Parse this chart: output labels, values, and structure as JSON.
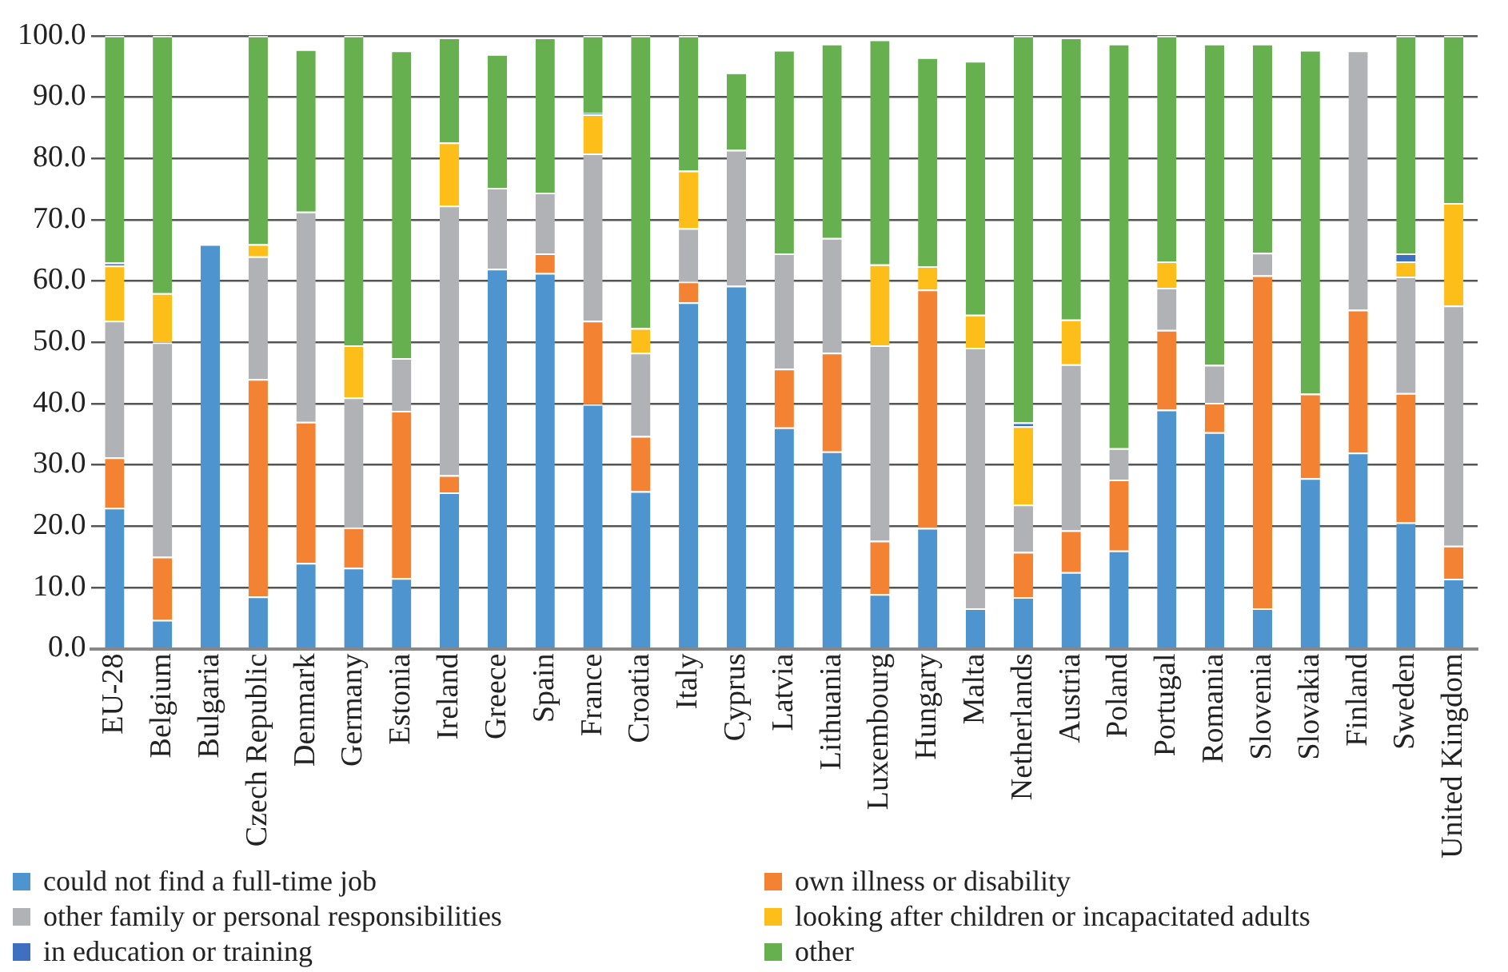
{
  "chart_data": {
    "type": "bar",
    "stacked": true,
    "legend": "bottom",
    "grid": "y",
    "categories": [
      "EU-28",
      "Belgium",
      "Bulgaria",
      "Czech Republic",
      "Denmark",
      "Germany",
      "Estonia",
      "Ireland",
      "Greece",
      "Spain",
      "France",
      "Croatia",
      "Italy",
      "Cyprus",
      "Latvia",
      "Lithuania",
      "Luxembourg",
      "Hungary",
      "Malta",
      "Netherlands",
      "Austria",
      "Poland",
      "Portugal",
      "Romania",
      "Slovenia",
      "Slovakia",
      "Finland",
      "Sweden",
      "United Kingdom"
    ],
    "ylim": [
      0,
      100
    ],
    "yticks": [
      {
        "value": 0,
        "label": "0.0"
      },
      {
        "value": 10,
        "label": "10.0"
      },
      {
        "value": 20,
        "label": "20.0"
      },
      {
        "value": 30,
        "label": "30.0"
      },
      {
        "value": 40,
        "label": "40.0"
      },
      {
        "value": 50,
        "label": "50.0"
      },
      {
        "value": 60,
        "label": "60.0"
      },
      {
        "value": 70,
        "label": "70.0"
      },
      {
        "value": 80,
        "label": "80.0"
      },
      {
        "value": 90,
        "label": "90.0"
      },
      {
        "value": 100,
        "label": "100.0"
      }
    ],
    "series": [
      {
        "name": "could not find a full-time job",
        "color": "#4e95d0",
        "values": [
          23.0,
          4.7,
          66.0,
          8.5,
          14.0,
          13.2,
          11.5,
          25.5,
          62.0,
          61.3,
          39.9,
          25.7,
          56.5,
          59.2,
          36.1,
          32.2,
          8.9,
          19.7,
          6.6,
          8.4,
          12.5,
          16.0,
          39.0,
          35.3,
          6.6,
          27.8,
          32.0,
          20.6,
          11.4
        ]
      },
      {
        "name": "own illness or disability",
        "color": "#f38233",
        "values": [
          8.2,
          10.3,
          null,
          35.5,
          23.0,
          6.6,
          27.3,
          2.8,
          null,
          3.2,
          13.6,
          9.0,
          3.4,
          null,
          9.6,
          16.1,
          8.7,
          38.9,
          null,
          7.4,
          6.8,
          11.6,
          13.0,
          4.8,
          54.3,
          13.8,
          23.3,
          21.1,
          5.4
        ]
      },
      {
        "name": "other family or personal responsibilities",
        "color": "#b1b2b5",
        "values": [
          22.3,
          35.0,
          null,
          20.0,
          34.3,
          21.2,
          8.6,
          44.0,
          13.2,
          9.9,
          27.3,
          13.6,
          8.7,
          22.2,
          18.8,
          18.7,
          31.9,
          null,
          42.5,
          7.7,
          27.1,
          5.1,
          6.9,
          6.2,
          3.7,
          null,
          42.3,
          19.0,
          39.2
        ]
      },
      {
        "name": "looking after children or incapacitated adults",
        "color": "#fdbe19",
        "values": [
          9.0,
          8.0,
          null,
          2.0,
          null,
          8.5,
          null,
          10.3,
          null,
          null,
          6.4,
          4.0,
          9.4,
          null,
          null,
          null,
          13.2,
          3.8,
          5.4,
          12.8,
          7.3,
          null,
          4.3,
          null,
          null,
          null,
          null,
          2.5,
          16.7
        ]
      },
      {
        "name": "in education or training",
        "color": "#3f6fbf",
        "values": [
          0.5,
          null,
          null,
          null,
          null,
          null,
          null,
          null,
          null,
          null,
          0.2,
          null,
          null,
          null,
          null,
          null,
          null,
          null,
          null,
          0.6,
          null,
          null,
          null,
          null,
          null,
          null,
          null,
          1.3,
          null
        ]
      },
      {
        "name": "other",
        "color": "#67b04f",
        "values": [
          37.0,
          42.0,
          null,
          34.0,
          26.5,
          50.5,
          50.2,
          17.1,
          21.8,
          25.3,
          12.6,
          47.7,
          22.0,
          12.6,
          33.2,
          31.7,
          36.7,
          34.1,
          41.4,
          63.1,
          46.0,
          66.0,
          36.8,
          52.4,
          34.1,
          56.1,
          null,
          35.5,
          27.3
        ]
      }
    ]
  }
}
